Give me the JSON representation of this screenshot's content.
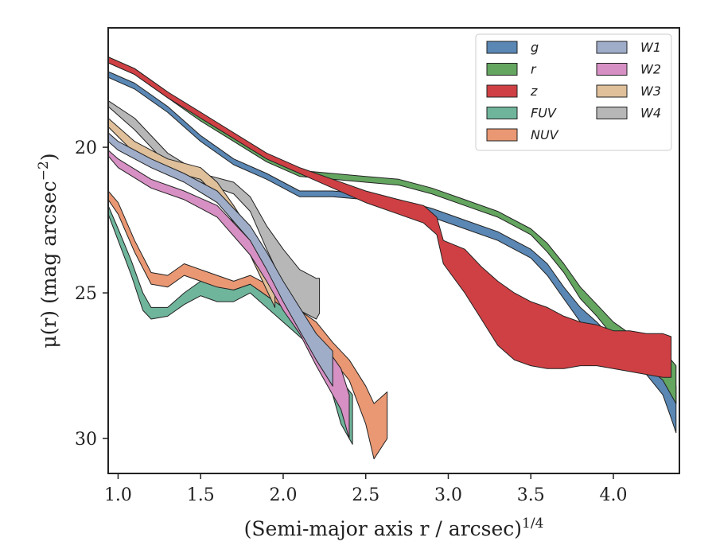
{
  "chart_data": {
    "type": "area",
    "xlabel": "(Semi-major axis r / arcsec)",
    "xlabel_sup": "1/4",
    "ylabel": "μ(r) (mag arcsec",
    "ylabel_sup": "−2",
    "ylabel_close": ")",
    "xlim": [
      0.94,
      4.4
    ],
    "ylim": [
      31.2,
      15.9
    ],
    "y_inverted": true,
    "xticks": [
      1.0,
      1.5,
      2.0,
      2.5,
      3.0,
      3.5,
      4.0
    ],
    "xtick_labels": [
      "1.0",
      "1.5",
      "2.0",
      "2.5",
      "3.0",
      "3.5",
      "4.0"
    ],
    "yticks": [
      20,
      25,
      30
    ],
    "ytick_labels": [
      "20",
      "25",
      "30"
    ],
    "legend_placement": "upper-right",
    "grid": false,
    "series": [
      {
        "name": "FUV",
        "label_style": "italic",
        "color": "#6fb59c",
        "x": [
          0.94,
          1.0,
          1.08,
          1.15,
          1.2,
          1.3,
          1.4,
          1.5,
          1.6,
          1.7,
          1.8,
          1.9,
          2.0,
          2.1,
          2.2,
          2.3,
          2.35,
          2.42
        ],
        "y_upper": [
          22.0,
          22.8,
          23.9,
          25.0,
          25.5,
          25.5,
          25.0,
          24.6,
          24.7,
          24.9,
          24.7,
          25.1,
          25.5,
          25.9,
          26.2,
          27.0,
          28.0,
          28.5
        ],
        "y_lower": [
          22.3,
          23.2,
          24.4,
          25.6,
          25.9,
          25.8,
          25.4,
          25.1,
          25.3,
          25.3,
          25.0,
          25.5,
          26.0,
          26.5,
          27.0,
          28.5,
          29.5,
          30.2
        ]
      },
      {
        "name": "NUV",
        "label_style": "italic",
        "color": "#e99873",
        "x": [
          0.94,
          1.0,
          1.1,
          1.2,
          1.3,
          1.4,
          1.5,
          1.6,
          1.7,
          1.8,
          1.9,
          2.0,
          2.1,
          2.2,
          2.3,
          2.4,
          2.5,
          2.55,
          2.63
        ],
        "y_upper": [
          21.5,
          21.9,
          23.2,
          24.3,
          24.4,
          24.0,
          24.2,
          24.4,
          24.6,
          24.4,
          24.7,
          25.1,
          25.6,
          26.0,
          26.7,
          27.3,
          28.2,
          28.8,
          28.4
        ],
        "y_lower": [
          21.8,
          22.3,
          23.6,
          24.7,
          24.8,
          24.4,
          24.6,
          24.8,
          24.9,
          24.7,
          25.1,
          25.5,
          26.0,
          26.5,
          27.3,
          28.0,
          29.5,
          30.7,
          30.0
        ]
      },
      {
        "name": "W4",
        "label_style": "italic",
        "color": "#b7b7b7",
        "x": [
          0.94,
          1.1,
          1.3,
          1.5,
          1.7,
          1.8,
          1.9,
          2.0,
          2.1,
          2.2,
          2.22
        ],
        "y_upper": [
          18.4,
          19.0,
          20.2,
          20.9,
          21.2,
          21.7,
          22.7,
          23.5,
          24.2,
          24.5,
          24.5
        ],
        "y_lower": [
          18.6,
          19.4,
          20.6,
          21.2,
          21.6,
          22.2,
          23.5,
          24.7,
          25.6,
          25.9,
          25.7
        ]
      },
      {
        "name": "W3",
        "label_style": "italic",
        "color": "#dfc09a",
        "x": [
          0.94,
          1.1,
          1.3,
          1.5,
          1.6,
          1.7,
          1.8,
          1.9,
          1.95
        ],
        "y_upper": [
          19.0,
          19.8,
          20.4,
          20.7,
          21.2,
          22.0,
          22.9,
          23.8,
          24.5
        ],
        "y_lower": [
          19.3,
          20.2,
          20.8,
          21.1,
          21.7,
          22.6,
          23.7,
          24.9,
          25.5
        ]
      },
      {
        "name": "W2",
        "label_style": "italic",
        "color": "#d690c3",
        "x": [
          0.94,
          1.0,
          1.2,
          1.4,
          1.6,
          1.8,
          1.9,
          2.0,
          2.1,
          2.2,
          2.3,
          2.35,
          2.4
        ],
        "y_upper": [
          20.1,
          20.4,
          21.1,
          21.5,
          22.0,
          23.2,
          24.0,
          24.9,
          25.6,
          26.5,
          27.2,
          27.6,
          28.5
        ],
        "y_lower": [
          20.3,
          20.7,
          21.4,
          21.8,
          22.4,
          23.7,
          24.6,
          25.6,
          26.4,
          27.5,
          28.5,
          29.0,
          30.0
        ]
      },
      {
        "name": "W1",
        "label_style": "italic",
        "color": "#9fadc9",
        "x": [
          0.94,
          1.0,
          1.2,
          1.4,
          1.6,
          1.8,
          1.9,
          2.0,
          2.1,
          2.2,
          2.3
        ],
        "y_upper": [
          19.5,
          19.8,
          20.4,
          20.9,
          21.5,
          22.7,
          23.6,
          24.6,
          25.5,
          26.4,
          27.0
        ],
        "y_lower": [
          19.8,
          20.1,
          20.7,
          21.2,
          21.9,
          23.2,
          24.2,
          25.3,
          26.3,
          27.3,
          28.2
        ]
      },
      {
        "name": "g",
        "label_style": "italic",
        "color": "#5a87b4",
        "x": [
          0.94,
          1.1,
          1.3,
          1.5,
          1.7,
          1.9,
          2.1,
          2.3,
          2.5,
          2.7,
          2.9,
          3.1,
          3.3,
          3.5,
          3.6,
          3.7,
          3.8,
          3.9,
          4.0,
          4.1,
          4.2,
          4.3,
          4.35,
          4.38
        ],
        "y_upper": [
          17.4,
          17.8,
          18.6,
          19.6,
          20.4,
          20.9,
          21.5,
          21.5,
          21.6,
          21.8,
          22.1,
          22.5,
          22.9,
          23.5,
          24.0,
          24.8,
          25.5,
          26.0,
          26.6,
          27.0,
          27.3,
          27.7,
          28.0,
          28.2
        ],
        "y_lower": [
          17.6,
          18.0,
          18.8,
          19.8,
          20.6,
          21.1,
          21.7,
          21.7,
          21.8,
          22.0,
          22.4,
          22.8,
          23.2,
          23.8,
          24.4,
          25.2,
          26.0,
          26.5,
          27.0,
          27.5,
          27.8,
          28.5,
          29.3,
          29.8
        ]
      },
      {
        "name": "r",
        "label_style": "italic",
        "color": "#64a560",
        "x": [
          0.94,
          1.1,
          1.3,
          1.5,
          1.7,
          1.9,
          2.1,
          2.3,
          2.5,
          2.7,
          2.9,
          3.1,
          3.3,
          3.5,
          3.6,
          3.7,
          3.8,
          3.9,
          4.0,
          4.1,
          4.2,
          4.3,
          4.35,
          4.38
        ],
        "y_upper": [
          16.9,
          17.3,
          18.1,
          18.9,
          19.6,
          20.3,
          20.8,
          20.9,
          21.0,
          21.1,
          21.4,
          21.8,
          22.2,
          22.8,
          23.3,
          24.0,
          24.8,
          25.4,
          26.0,
          26.4,
          26.7,
          27.0,
          27.3,
          27.5
        ],
        "y_lower": [
          17.1,
          17.5,
          18.3,
          19.1,
          19.8,
          20.5,
          21.0,
          21.1,
          21.2,
          21.3,
          21.6,
          22.0,
          22.4,
          23.0,
          23.6,
          24.3,
          25.2,
          25.8,
          26.5,
          27.1,
          27.5,
          28.0,
          28.5,
          28.8
        ]
      },
      {
        "name": "z",
        "label_style": "italic",
        "color": "#cf4044",
        "x": [
          0.94,
          1.1,
          1.3,
          1.5,
          1.7,
          1.9,
          2.1,
          2.3,
          2.5,
          2.7,
          2.85,
          2.93,
          2.97,
          3.1,
          3.2,
          3.3,
          3.4,
          3.5,
          3.6,
          3.7,
          3.8,
          3.9,
          4.0,
          4.1,
          4.2,
          4.3,
          4.35
        ],
        "y_upper": [
          16.9,
          17.3,
          18.1,
          18.8,
          19.5,
          20.2,
          20.7,
          21.1,
          21.5,
          21.8,
          22.0,
          22.4,
          23.2,
          23.5,
          24.1,
          24.6,
          25.0,
          25.3,
          25.5,
          25.8,
          26.0,
          26.1,
          26.3,
          26.3,
          26.4,
          26.4,
          26.5
        ],
        "y_lower": [
          17.1,
          17.5,
          18.3,
          19.0,
          19.7,
          20.4,
          20.9,
          21.4,
          21.9,
          22.3,
          22.6,
          23.0,
          24.0,
          25.0,
          25.9,
          26.8,
          27.3,
          27.5,
          27.6,
          27.6,
          27.5,
          27.5,
          27.6,
          27.7,
          27.8,
          27.9,
          27.9
        ]
      }
    ],
    "legend_order": [
      "g",
      "r",
      "z",
      "FUV",
      "NUV",
      "W1",
      "W2",
      "W3",
      "W4"
    ]
  }
}
